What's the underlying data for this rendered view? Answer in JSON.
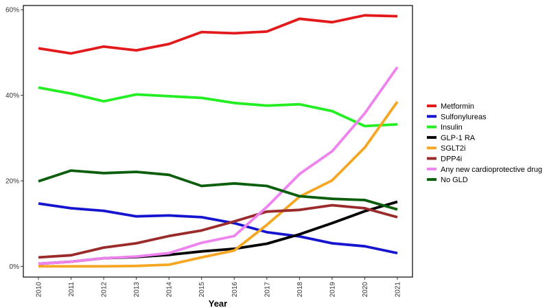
{
  "chart_data": {
    "type": "line",
    "title": "",
    "xlabel": "Year",
    "ylabel": "",
    "x": [
      2010,
      2011,
      2012,
      2013,
      2014,
      2015,
      2016,
      2017,
      2018,
      2019,
      2020,
      2021
    ],
    "x_tick_labels": [
      "2010",
      "2011",
      "2012",
      "2013",
      "2014",
      "2015",
      "2016",
      "2017",
      "2018",
      "2019",
      "2020",
      "2021"
    ],
    "y_ticks": [
      0,
      20,
      40,
      60
    ],
    "y_tick_labels": [
      "0%",
      "20%",
      "40%",
      "60%"
    ],
    "ylim": [
      -2.5,
      61
    ],
    "grid": false,
    "legend_position": "right",
    "series": [
      {
        "name": "Metformin",
        "color": "#e31a1c",
        "values": [
          51.0,
          49.8,
          51.4,
          50.5,
          52.0,
          54.8,
          54.5,
          54.9,
          57.9,
          57.1,
          58.7,
          58.5
        ]
      },
      {
        "name": "Sulfonylureas",
        "color": "#1515d0",
        "values": [
          14.7,
          13.6,
          13.0,
          11.7,
          11.9,
          11.5,
          10.1,
          8.0,
          7.0,
          5.4,
          4.7,
          3.1
        ]
      },
      {
        "name": "Insulin",
        "color": "#22ee22",
        "values": [
          41.8,
          40.4,
          38.6,
          40.2,
          39.8,
          39.4,
          38.2,
          37.6,
          37.9,
          36.3,
          32.8,
          33.2
        ]
      },
      {
        "name": "GLP-1 RA",
        "color": "#000000",
        "values": [
          0.6,
          1.1,
          1.9,
          2.2,
          2.7,
          3.5,
          4.1,
          5.3,
          7.5,
          10.1,
          12.9,
          15.1
        ]
      },
      {
        "name": "SGLT2i",
        "color": "#f5a623",
        "values": [
          0.0,
          0.0,
          0.0,
          0.1,
          0.4,
          2.1,
          3.7,
          9.7,
          16.3,
          20.1,
          27.8,
          38.5
        ]
      },
      {
        "name": "DPP4i",
        "color": "#9b2a2a",
        "values": [
          2.1,
          2.6,
          4.4,
          5.4,
          7.1,
          8.4,
          10.5,
          12.8,
          13.2,
          14.3,
          13.6,
          11.5
        ]
      },
      {
        "name": "Any new cardioprotective  drug",
        "color": "#ee82ee",
        "values": [
          0.6,
          1.1,
          1.9,
          2.3,
          3.1,
          5.5,
          7.1,
          13.9,
          21.6,
          26.9,
          35.8,
          46.6
        ]
      },
      {
        "name": "No GLD",
        "color": "#0b5e0b",
        "values": [
          19.9,
          22.4,
          21.8,
          22.1,
          21.4,
          18.8,
          19.4,
          18.8,
          16.4,
          15.8,
          15.5,
          13.3
        ]
      }
    ]
  }
}
